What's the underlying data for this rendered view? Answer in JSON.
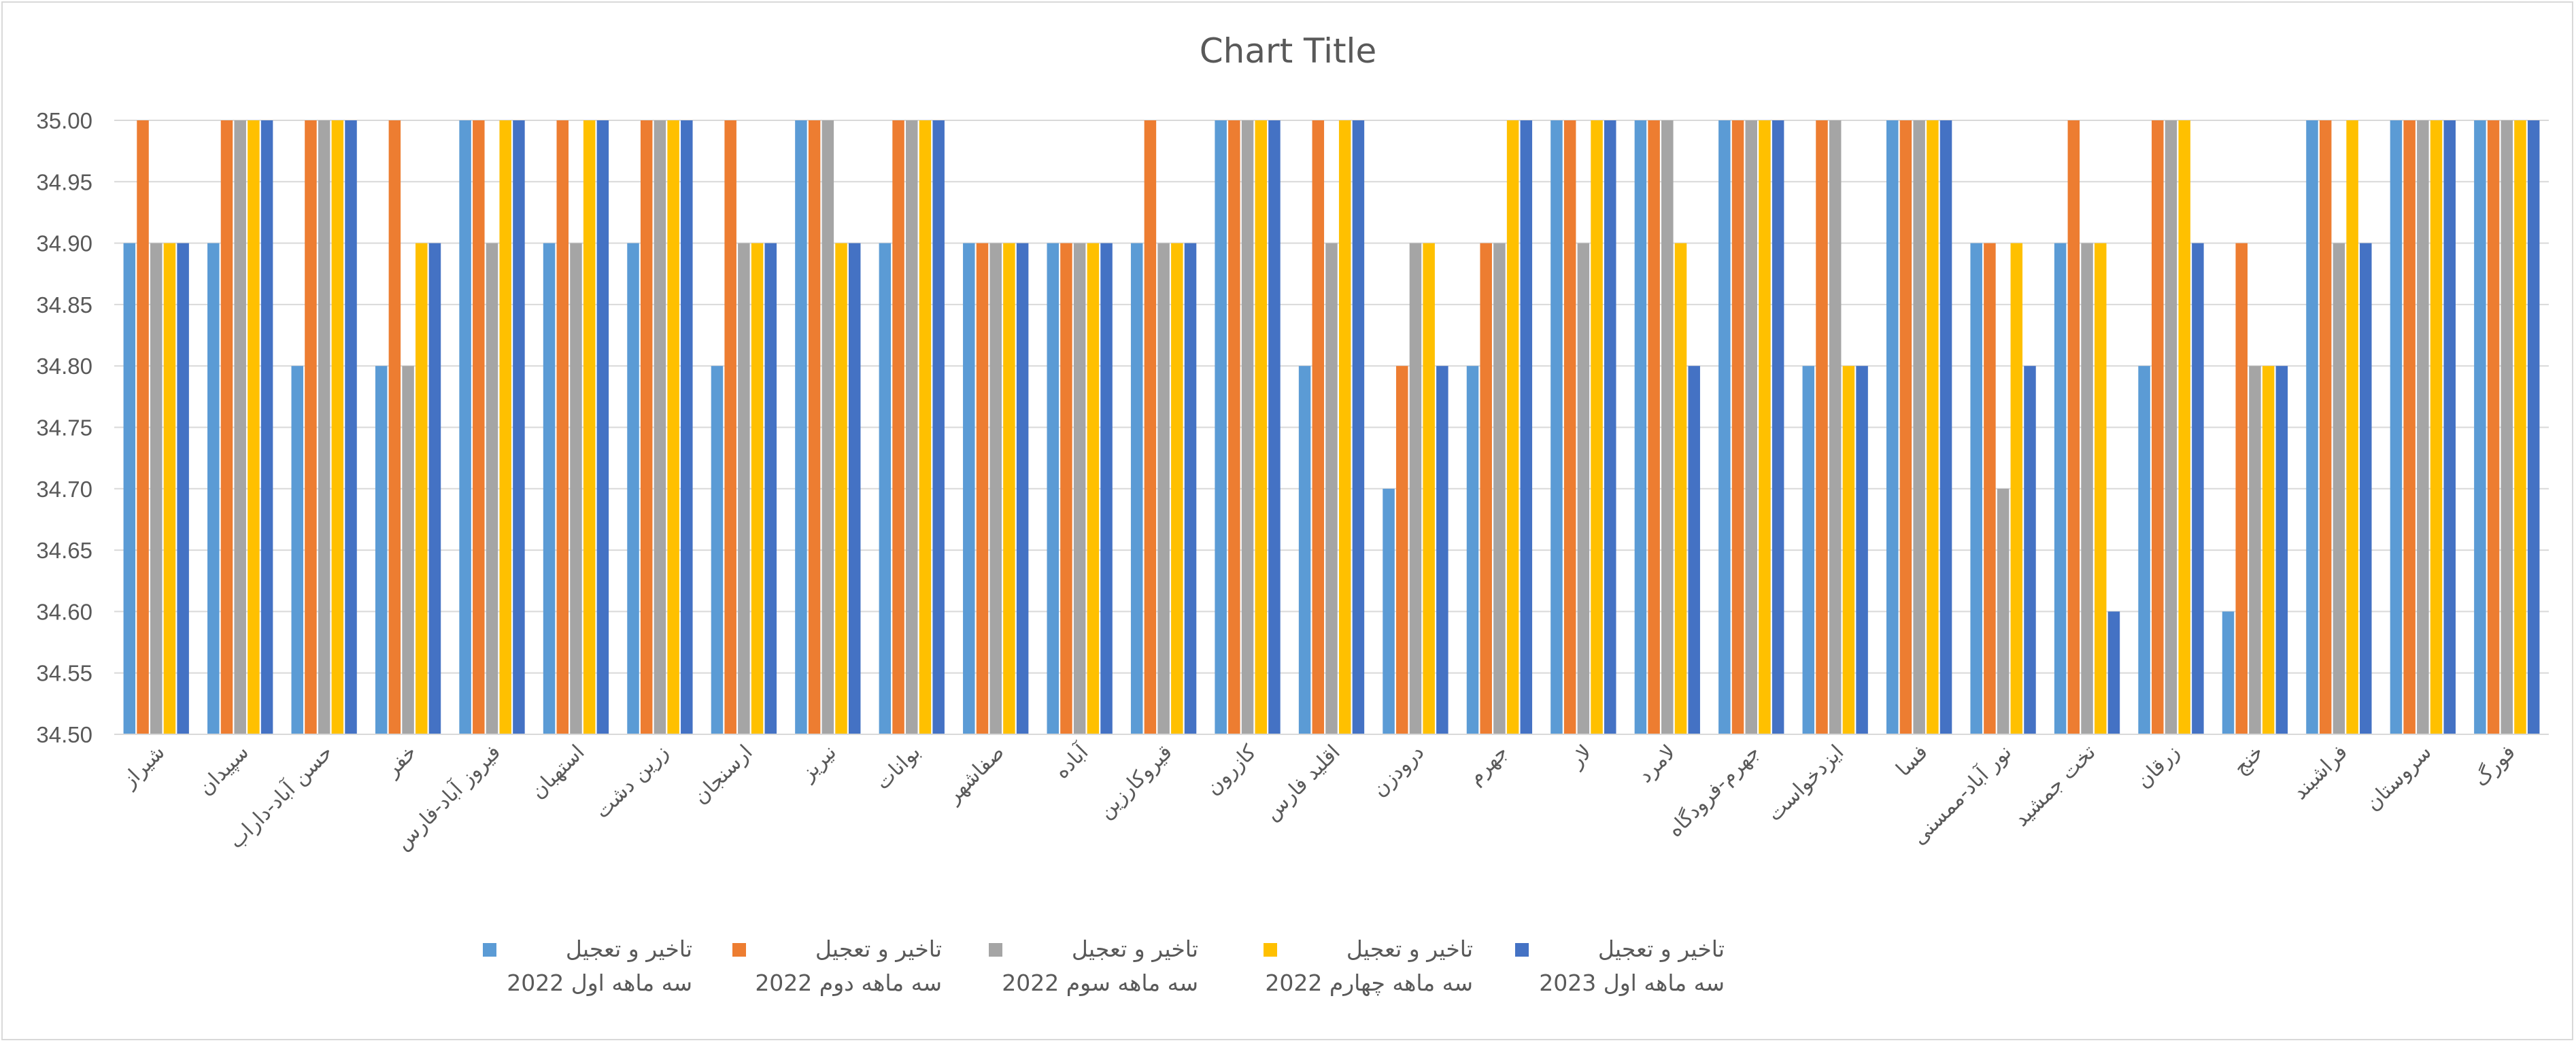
{
  "chart_data": {
    "type": "bar",
    "title": "Chart Title",
    "xlabel": "",
    "ylabel": "",
    "ylim": [
      34.5,
      35.0
    ],
    "ytick_step": 0.05,
    "grid": true,
    "legend_position": "bottom",
    "categories": [
      "شیراز",
      "سپیدان",
      "حسن آباد-داراب",
      "خفر",
      "فیروز آباد-فارس",
      "استهبان",
      "زرین دشت",
      "ارسنجان",
      "نیریز",
      "بوانات",
      "صفاشهر",
      "آباده",
      "قیروکارزین",
      "کازرون",
      "اقلید فارس",
      "درودزن",
      "جهرم",
      "لار",
      "لامرد",
      "جهرم-فرودگاه",
      "ایزدخواست",
      "فسا",
      "نور آباد-ممسنی",
      "تخت جمشید",
      "زرقان",
      "خنج",
      "فراشبند",
      "سروستان",
      "فورگ"
    ],
    "series": [
      {
        "name": "تاخیر و تعجیل سه ماهه اول 2022",
        "legend_line1": "تاخیر و تعجیل",
        "legend_line2": "سه ماهه اول 2022",
        "color": "#5b9bd5",
        "values": [
          34.9,
          34.9,
          34.8,
          34.8,
          35.0,
          34.9,
          34.9,
          34.8,
          35.0,
          34.9,
          34.9,
          34.9,
          34.9,
          35.0,
          34.8,
          34.7,
          34.8,
          35.0,
          35.0,
          35.0,
          34.8,
          35.0,
          34.9,
          34.9,
          34.8,
          34.6,
          35.0,
          35.0,
          35.0
        ]
      },
      {
        "name": "تاخیر و تعجیل سه ماهه دوم 2022",
        "legend_line1": "تاخیر و تعجیل",
        "legend_line2": "سه ماهه دوم 2022",
        "color": "#ed7d31",
        "values": [
          35.0,
          35.0,
          35.0,
          35.0,
          35.0,
          35.0,
          35.0,
          35.0,
          35.0,
          35.0,
          34.9,
          34.9,
          35.0,
          35.0,
          35.0,
          34.8,
          34.9,
          35.0,
          35.0,
          35.0,
          35.0,
          35.0,
          34.9,
          35.0,
          35.0,
          34.9,
          35.0,
          35.0,
          35.0
        ]
      },
      {
        "name": "تاخیر و تعجیل سه ماهه سوم 2022",
        "legend_line1": "تاخیر و تعجیل",
        "legend_line2": "سه ماهه سوم 2022",
        "color": "#a5a5a5",
        "values": [
          34.9,
          35.0,
          35.0,
          34.8,
          34.9,
          34.9,
          35.0,
          34.9,
          35.0,
          35.0,
          34.9,
          34.9,
          34.9,
          35.0,
          34.9,
          34.9,
          34.9,
          34.9,
          35.0,
          35.0,
          35.0,
          35.0,
          34.7,
          34.9,
          35.0,
          34.8,
          34.9,
          35.0,
          35.0
        ]
      },
      {
        "name": "تاخیر و تعجیل سه ماهه چهارم 2022",
        "legend_line1": "تاخیر و تعجیل",
        "legend_line2": "سه ماهه چهارم 2022",
        "color": "#ffc000",
        "values": [
          34.9,
          35.0,
          35.0,
          34.9,
          35.0,
          35.0,
          35.0,
          34.9,
          34.9,
          35.0,
          34.9,
          34.9,
          34.9,
          35.0,
          35.0,
          34.9,
          35.0,
          35.0,
          34.9,
          35.0,
          34.8,
          35.0,
          34.9,
          34.9,
          35.0,
          34.8,
          35.0,
          35.0,
          35.0
        ]
      },
      {
        "name": "تاخیر و تعجیل سه ماهه اول 2023",
        "legend_line1": "تاخیر و تعجیل",
        "legend_line2": "سه ماهه اول 2023",
        "color": "#4472c4",
        "values": [
          34.9,
          35.0,
          35.0,
          34.9,
          35.0,
          35.0,
          35.0,
          34.9,
          34.9,
          35.0,
          34.9,
          34.9,
          34.9,
          35.0,
          35.0,
          34.8,
          35.0,
          35.0,
          34.8,
          35.0,
          34.8,
          35.0,
          34.8,
          34.6,
          34.9,
          34.8,
          34.9,
          35.0,
          35.0
        ]
      }
    ]
  }
}
